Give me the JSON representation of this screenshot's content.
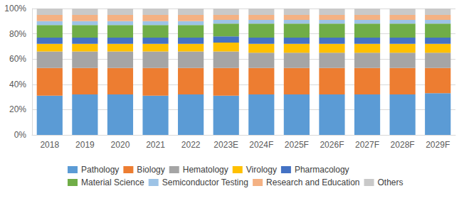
{
  "chart_data": {
    "type": "bar",
    "stacked": true,
    "grid": true,
    "legend": "bottom",
    "categories": [
      "2018",
      "2019",
      "2020",
      "2021",
      "2022",
      "2023E",
      "2024F",
      "2025F",
      "2026F",
      "2027F",
      "2028F",
      "2029F"
    ],
    "ylim": [
      0,
      100
    ],
    "yticks": [
      {
        "value": 0,
        "label": "0%"
      },
      {
        "value": 20,
        "label": "20%"
      },
      {
        "value": 40,
        "label": "40%"
      },
      {
        "value": 60,
        "label": "60%"
      },
      {
        "value": 80,
        "label": "80%"
      },
      {
        "value": 100,
        "label": "100%"
      }
    ],
    "series": [
      {
        "name": "Pathology",
        "color": "#5b9bd5",
        "values": [
          31,
          32,
          32,
          31,
          32,
          31,
          32,
          32,
          32,
          32,
          32,
          33
        ]
      },
      {
        "name": "Biology",
        "color": "#ed7d31",
        "values": [
          22,
          21,
          21,
          22,
          21,
          22,
          21,
          21,
          21,
          21,
          21,
          20
        ]
      },
      {
        "name": "Hematology",
        "color": "#a5a5a5",
        "values": [
          13,
          13,
          13,
          13,
          13,
          13,
          12,
          12,
          12,
          12,
          12,
          12
        ]
      },
      {
        "name": "Virology",
        "color": "#ffc000",
        "values": [
          6,
          6,
          6,
          6,
          6,
          7,
          7,
          7,
          7,
          7,
          7,
          7
        ]
      },
      {
        "name": "Pharmacology",
        "color": "#4472c4",
        "values": [
          5,
          5,
          5,
          5,
          5,
          5,
          5,
          5,
          5,
          5,
          5,
          5
        ]
      },
      {
        "name": "Material Science",
        "color": "#70ad47",
        "values": [
          10,
          10,
          10,
          10,
          10,
          10,
          11,
          11,
          11,
          11,
          11,
          11
        ]
      },
      {
        "name": "Semiconductor Testing",
        "color": "#9dc3e6",
        "values": [
          3,
          3,
          3,
          3,
          3,
          3,
          3,
          3,
          3,
          3,
          3,
          3
        ]
      },
      {
        "name": "Research and Education",
        "color": "#f4b183",
        "values": [
          5,
          5,
          5,
          5,
          5,
          4,
          4,
          4,
          4,
          4,
          4,
          4
        ]
      },
      {
        "name": "Others",
        "color": "#c9c9c9",
        "values": [
          5,
          5,
          5,
          5,
          5,
          5,
          5,
          5,
          5,
          5,
          5,
          5
        ]
      }
    ]
  }
}
